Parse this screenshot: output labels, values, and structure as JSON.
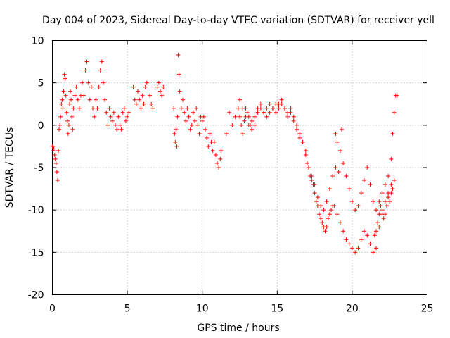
{
  "chart_data": {
    "type": "scatter",
    "title": "Day 004 of 2023, Sidereal Day-to-day VTEC variation (SDTVAR) for receiver yell",
    "xlabel": "GPS time / hours",
    "ylabel": "SDTVAR / TECUs",
    "xlim": [
      0,
      25
    ],
    "ylim": [
      -20,
      10
    ],
    "xticks": [
      "0",
      "5",
      "10",
      "15",
      "20",
      "25"
    ],
    "yticks": [
      "10",
      "5",
      "0",
      "-5",
      "-10",
      "-15",
      "-20"
    ],
    "grid": true,
    "marker": "+",
    "color": "#ff0000",
    "series": [
      {
        "name": "SDTVAR",
        "x": [
          0.0,
          0.05,
          0.1,
          0.15,
          0.2,
          0.25,
          0.3,
          0.35,
          0.4,
          0.45,
          0.5,
          0.55,
          0.6,
          0.65,
          0.7,
          0.75,
          0.8,
          0.85,
          0.9,
          0.95,
          1.0,
          1.05,
          1.1,
          1.15,
          1.2,
          1.25,
          1.3,
          1.35,
          1.4,
          1.5,
          1.6,
          1.7,
          1.8,
          1.9,
          2.0,
          2.1,
          2.2,
          2.3,
          2.4,
          2.5,
          2.6,
          2.7,
          2.8,
          2.9,
          3.0,
          3.1,
          3.2,
          3.3,
          3.4,
          3.5,
          3.6,
          3.7,
          3.8,
          3.9,
          4.0,
          4.1,
          4.2,
          4.3,
          4.4,
          4.5,
          4.6,
          4.7,
          4.8,
          4.9,
          5.0,
          5.1,
          5.4,
          5.5,
          5.6,
          5.7,
          5.8,
          5.9,
          6.0,
          6.1,
          6.2,
          6.3,
          6.5,
          6.6,
          6.7,
          7.0,
          7.1,
          7.2,
          7.3,
          7.4,
          8.1,
          8.15,
          8.2,
          8.25,
          8.3,
          8.35,
          8.4,
          8.45,
          8.5,
          8.6,
          8.7,
          8.8,
          8.9,
          9.0,
          9.1,
          9.2,
          9.3,
          9.4,
          9.5,
          9.6,
          9.7,
          9.8,
          9.9,
          10.0,
          10.1,
          10.2,
          10.3,
          10.4,
          10.5,
          10.6,
          10.7,
          10.8,
          10.9,
          11.0,
          11.1,
          11.2,
          11.25,
          11.6,
          11.8,
          12.0,
          12.2,
          12.4,
          12.5,
          12.6,
          12.7,
          12.8,
          12.9,
          13.0,
          13.1,
          13.2,
          13.3,
          13.5,
          13.7,
          13.9,
          14.1,
          14.3,
          14.5,
          14.7,
          14.9,
          15.1,
          15.3,
          15.5,
          15.7,
          15.9,
          16.1,
          16.3,
          16.5,
          16.7,
          16.9,
          17.0,
          17.1,
          17.2,
          17.3,
          17.4,
          17.5,
          17.6,
          17.7,
          17.8,
          17.9,
          18.0,
          18.1,
          18.2,
          18.3,
          18.4,
          18.5,
          18.6,
          18.7,
          18.8,
          19.0,
          19.2,
          19.4,
          19.6,
          19.8,
          20.0,
          20.2,
          20.4,
          20.6,
          20.8,
          21.0,
          21.2,
          21.4,
          21.6,
          21.8,
          22.0,
          22.2,
          22.4,
          22.6,
          22.8,
          23.0,
          12.5,
          12.7,
          12.9,
          13.1,
          13.3,
          13.5,
          13.7,
          13.9,
          14.1,
          14.3,
          14.5,
          14.7,
          14.9,
          15.1,
          15.3,
          15.5,
          15.7,
          15.9,
          16.1,
          16.3,
          16.5,
          16.7,
          16.9,
          17.1,
          17.3,
          17.5,
          17.7,
          17.9,
          18.1,
          18.3,
          18.5,
          18.7,
          18.9,
          19.1,
          19.3,
          18.9,
          19.0,
          19.2,
          19.4,
          19.6,
          19.8,
          20.0,
          20.2,
          20.4,
          20.6,
          20.8,
          21.0,
          21.2,
          21.4,
          21.6,
          21.8,
          22.0,
          22.2,
          22.4,
          22.6,
          22.7,
          22.8,
          22.9,
          21.5,
          21.6,
          21.7,
          21.8,
          21.9,
          22.0,
          22.1,
          22.2,
          22.3,
          22.4,
          22.5,
          22.6,
          22.7
        ],
        "y": [
          -2.5,
          -3.0,
          -2.8,
          -3.5,
          -4.0,
          -4.5,
          -5.5,
          -6.5,
          -3.0,
          -0.5,
          0.0,
          1.0,
          2.5,
          3.0,
          2.0,
          4.0,
          6.0,
          5.5,
          3.5,
          1.5,
          0.5,
          -1.0,
          0.0,
          2.5,
          4.0,
          3.0,
          1.0,
          -0.5,
          2.0,
          3.5,
          4.5,
          3.0,
          2.0,
          3.5,
          5.0,
          3.5,
          6.5,
          7.5,
          5.0,
          3.0,
          4.5,
          2.0,
          1.0,
          3.0,
          2.0,
          4.5,
          6.5,
          7.5,
          5.0,
          3.0,
          1.5,
          0.0,
          2.0,
          1.0,
          0.5,
          1.5,
          0.0,
          -0.5,
          1.0,
          0.0,
          -0.5,
          1.5,
          2.0,
          0.5,
          1.0,
          1.5,
          4.5,
          3.0,
          2.5,
          4.0,
          3.0,
          2.0,
          3.5,
          2.5,
          4.5,
          5.0,
          3.5,
          2.5,
          2.0,
          4.5,
          5.0,
          4.0,
          3.5,
          4.5,
          2.0,
          -1.0,
          -2.0,
          -0.5,
          -2.5,
          1.0,
          8.3,
          6.0,
          4.0,
          2.0,
          3.0,
          1.5,
          0.5,
          2.0,
          1.0,
          -0.5,
          0.0,
          1.5,
          0.5,
          2.0,
          0.0,
          -1.0,
          1.0,
          0.5,
          1.0,
          -0.5,
          -1.5,
          -2.5,
          -1.0,
          -2.0,
          -3.0,
          -2.0,
          -3.5,
          -4.5,
          -5.0,
          -4.0,
          -3.0,
          -1.0,
          1.5,
          0.0,
          1.0,
          2.0,
          1.0,
          0.0,
          -1.0,
          0.5,
          2.0,
          1.5,
          1.0,
          0.0,
          0.5,
          1.0,
          2.0,
          2.5,
          1.5,
          2.0,
          2.5,
          2.0,
          1.5,
          2.5,
          3.0,
          2.0,
          1.0,
          1.5,
          0.5,
          -0.5,
          -1.5,
          -2.0,
          -3.0,
          -4.5,
          -5.0,
          -6.0,
          -6.5,
          -7.0,
          -8.0,
          -9.0,
          -9.5,
          -10.5,
          -11.0,
          -11.5,
          -12.0,
          -12.5,
          -12.0,
          -11.0,
          -10.5,
          -10.0,
          -9.5,
          -9.5,
          -10.5,
          -11.5,
          -12.5,
          -13.5,
          -14.0,
          -14.5,
          -15.0,
          -14.5,
          -13.5,
          -12.5,
          -13.0,
          -14.0,
          -15.0,
          -14.5,
          -12.0,
          -10.5,
          -9.0,
          -8.0,
          -7.0,
          -6.5,
          3.5,
          3.0,
          2.0,
          1.0,
          0.0,
          -0.5,
          0.0,
          1.5,
          2.0,
          1.5,
          1.0,
          1.5,
          2.0,
          2.5,
          2.0,
          2.5,
          2.0,
          1.5,
          2.0,
          1.0,
          0.0,
          -1.0,
          -2.0,
          -3.5,
          -5.0,
          -6.0,
          -7.0,
          -8.5,
          -9.5,
          -10.0,
          -9.0,
          -7.5,
          -6.0,
          -5.0,
          -5.5,
          -0.5,
          -1.0,
          -2.0,
          -3.0,
          -4.5,
          -6.0,
          -7.5,
          -9.0,
          -10.0,
          -9.5,
          -8.0,
          -6.5,
          -5.0,
          -7.0,
          -9.0,
          -10.0,
          -9.0,
          -8.0,
          -7.0,
          -6.0,
          -4.0,
          -1.0,
          1.5,
          3.5,
          -13.0,
          -12.5,
          -11.5,
          -10.5,
          -9.5,
          -10.0,
          -11.0,
          -10.5,
          -9.5,
          -8.5,
          -9.0,
          -8.0,
          -7.5
        ]
      }
    ]
  }
}
